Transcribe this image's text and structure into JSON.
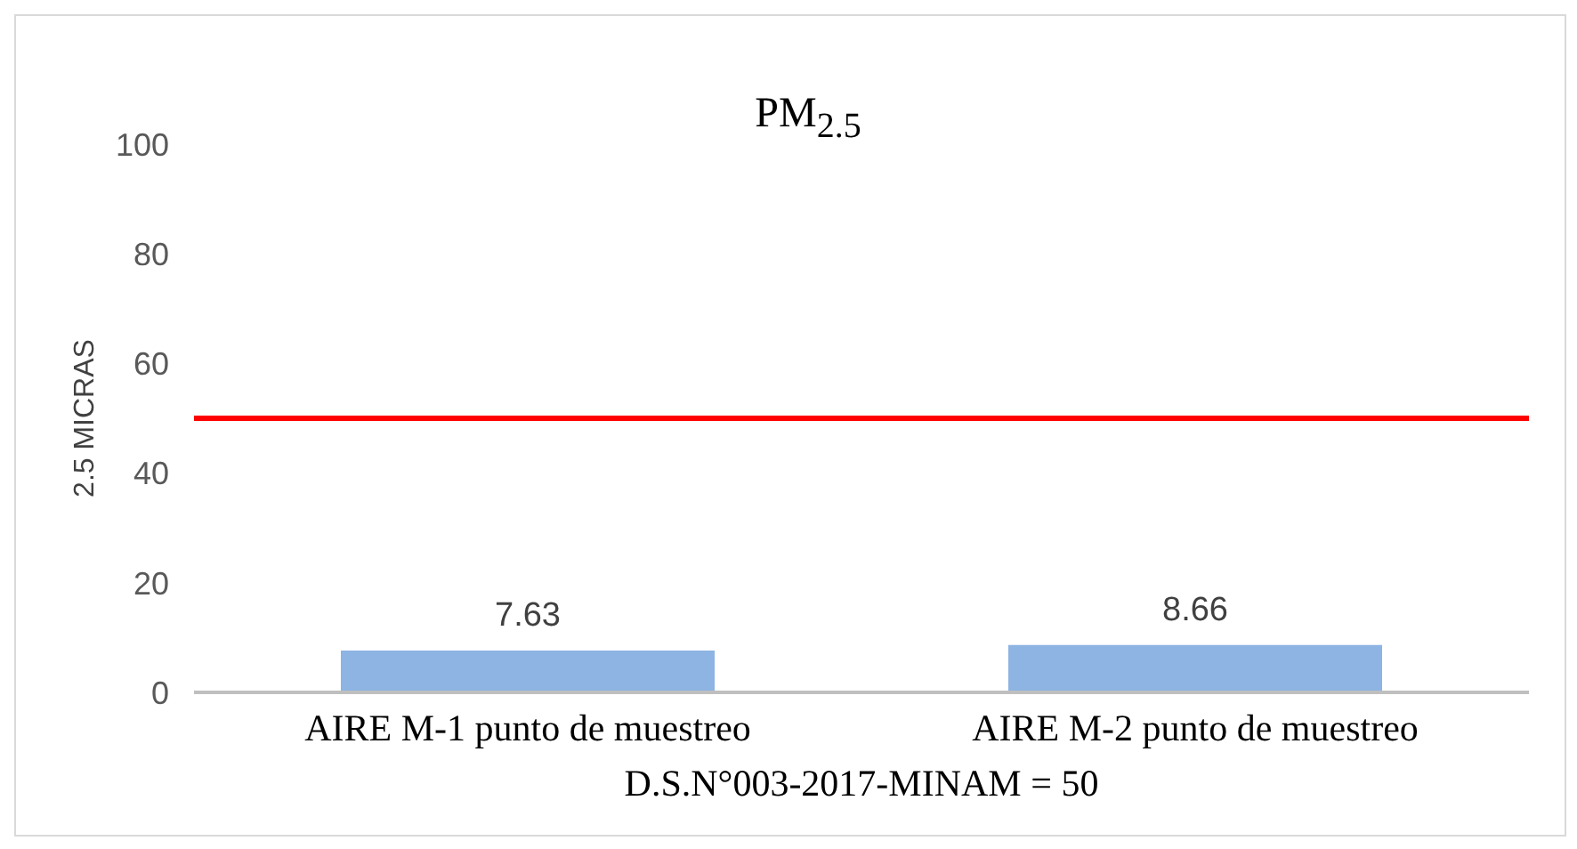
{
  "chart_data": {
    "type": "bar",
    "title": "PM$_{2.5}$",
    "xlabel": "D.S.N°003-2017-MINAM = 50",
    "ylabel": "2.5  MICRAS",
    "categories": [
      "AIRE M-1 punto de muestreo",
      "AIRE M-2 punto de muestreo"
    ],
    "values": [
      7.63,
      8.66
    ],
    "color": "#8db4e2",
    "data_labels": true,
    "ylim": [
      0,
      100
    ],
    "yticks": [
      0,
      20,
      40,
      60,
      80,
      100
    ],
    "grid": false,
    "ref_lines": [
      {
        "axis": "y",
        "value": 50,
        "color": "#ff0000"
      }
    ]
  }
}
